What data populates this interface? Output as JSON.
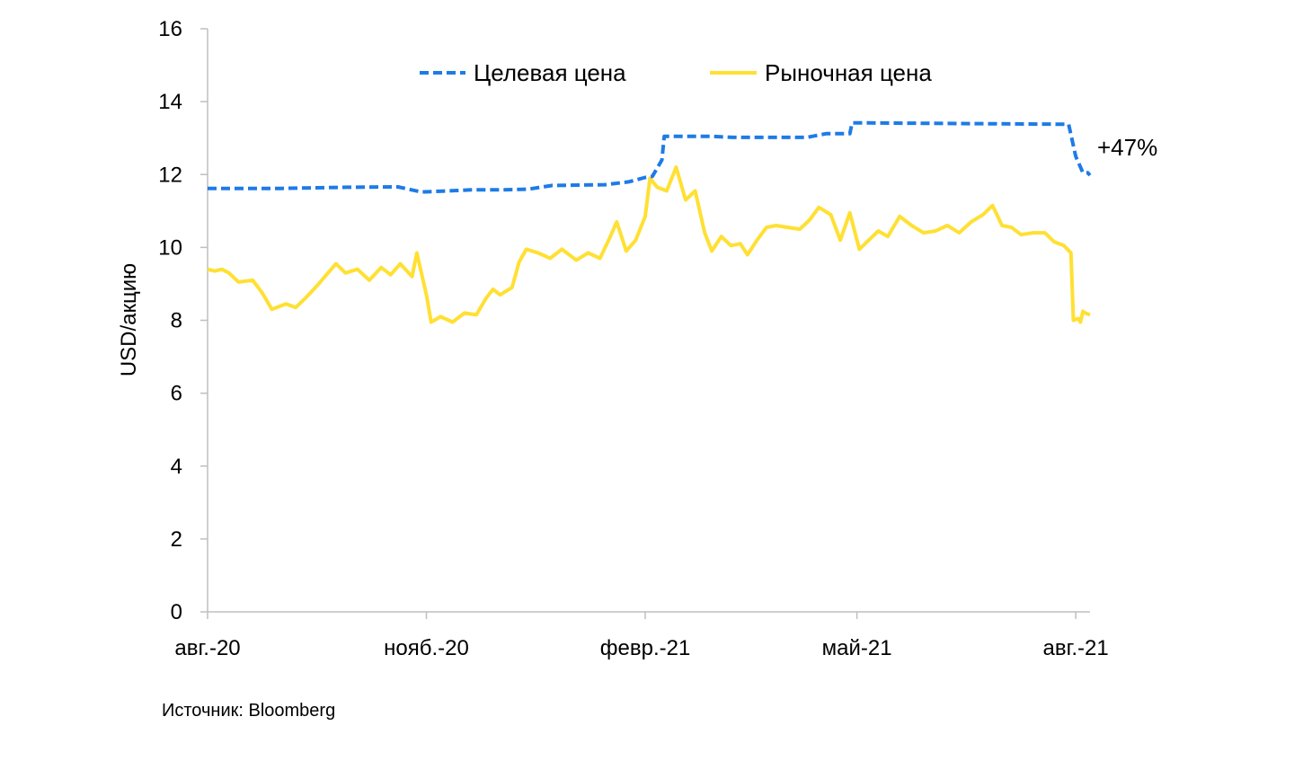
{
  "chart_data": {
    "type": "line",
    "title": "",
    "xlabel": "",
    "ylabel": "USD/акцию",
    "ylim": [
      0,
      16
    ],
    "yticks": [
      0,
      2,
      4,
      6,
      8,
      10,
      12,
      14,
      16
    ],
    "xlim": [
      "2020-08-01",
      "2021-08-07"
    ],
    "xticks": [
      {
        "date": "2020-08-01",
        "label": "авг.-20"
      },
      {
        "date": "2020-11-01",
        "label": "нояб.-20"
      },
      {
        "date": "2021-02-01",
        "label": "февр.-21"
      },
      {
        "date": "2021-05-01",
        "label": "май-21"
      },
      {
        "date": "2021-08-01",
        "label": "авг.-21"
      }
    ],
    "grid": false,
    "legend_position": "top-center",
    "series": [
      {
        "name": "Целевая цена",
        "color": "#1E7BE6",
        "style": "dashed",
        "points": [
          [
            "2020-08-01",
            11.62
          ],
          [
            "2020-09-01",
            11.62
          ],
          [
            "2020-09-29",
            11.65
          ],
          [
            "2020-10-20",
            11.66
          ],
          [
            "2020-10-30",
            11.52
          ],
          [
            "2020-11-10",
            11.55
          ],
          [
            "2020-11-20",
            11.58
          ],
          [
            "2020-12-03",
            11.58
          ],
          [
            "2020-12-14",
            11.6
          ],
          [
            "2020-12-24",
            11.7
          ],
          [
            "2021-01-15",
            11.72
          ],
          [
            "2021-01-25",
            11.8
          ],
          [
            "2021-02-01",
            11.92
          ],
          [
            "2021-02-04",
            11.95
          ],
          [
            "2021-02-08",
            12.4
          ],
          [
            "2021-02-09",
            13.05
          ],
          [
            "2021-03-01",
            13.05
          ],
          [
            "2021-03-10",
            13.02
          ],
          [
            "2021-04-10",
            13.02
          ],
          [
            "2021-04-18",
            13.12
          ],
          [
            "2021-04-28",
            13.12
          ],
          [
            "2021-04-29",
            13.42
          ],
          [
            "2021-07-29",
            13.38
          ],
          [
            "2021-08-01",
            12.5
          ],
          [
            "2021-08-04",
            12.05
          ],
          [
            "2021-08-06",
            12.05
          ],
          [
            "2021-08-07",
            11.98
          ]
        ]
      },
      {
        "name": "Рыночная цена",
        "color": "#FFE033",
        "style": "solid",
        "points": [
          [
            "2020-08-01",
            9.4
          ],
          [
            "2020-08-04",
            9.35
          ],
          [
            "2020-08-07",
            9.4
          ],
          [
            "2020-08-10",
            9.3
          ],
          [
            "2020-08-14",
            9.05
          ],
          [
            "2020-08-20",
            9.1
          ],
          [
            "2020-08-24",
            8.75
          ],
          [
            "2020-08-28",
            8.3
          ],
          [
            "2020-09-03",
            8.45
          ],
          [
            "2020-09-07",
            8.35
          ],
          [
            "2020-09-11",
            8.6
          ],
          [
            "2020-09-16",
            8.95
          ],
          [
            "2020-09-20",
            9.25
          ],
          [
            "2020-09-24",
            9.55
          ],
          [
            "2020-09-28",
            9.3
          ],
          [
            "2020-10-03",
            9.4
          ],
          [
            "2020-10-08",
            9.1
          ],
          [
            "2020-10-13",
            9.45
          ],
          [
            "2020-10-17",
            9.25
          ],
          [
            "2020-10-21",
            9.55
          ],
          [
            "2020-10-26",
            9.2
          ],
          [
            "2020-10-28",
            9.85
          ],
          [
            "2020-11-01",
            8.7
          ],
          [
            "2020-11-03",
            7.95
          ],
          [
            "2020-11-07",
            8.1
          ],
          [
            "2020-11-12",
            7.95
          ],
          [
            "2020-11-17",
            8.2
          ],
          [
            "2020-11-22",
            8.15
          ],
          [
            "2020-11-26",
            8.6
          ],
          [
            "2020-11-29",
            8.85
          ],
          [
            "2020-12-02",
            8.7
          ],
          [
            "2020-12-07",
            8.9
          ],
          [
            "2020-12-10",
            9.6
          ],
          [
            "2020-12-13",
            9.95
          ],
          [
            "2020-12-18",
            9.85
          ],
          [
            "2020-12-23",
            9.7
          ],
          [
            "2020-12-28",
            9.95
          ],
          [
            "2021-01-03",
            9.65
          ],
          [
            "2021-01-08",
            9.85
          ],
          [
            "2021-01-13",
            9.7
          ],
          [
            "2021-01-17",
            10.25
          ],
          [
            "2021-01-20",
            10.7
          ],
          [
            "2021-01-24",
            9.9
          ],
          [
            "2021-01-28",
            10.2
          ],
          [
            "2021-02-01",
            10.85
          ],
          [
            "2021-02-03",
            11.9
          ],
          [
            "2021-02-06",
            11.65
          ],
          [
            "2021-02-10",
            11.55
          ],
          [
            "2021-02-14",
            12.2
          ],
          [
            "2021-02-18",
            11.3
          ],
          [
            "2021-02-22",
            11.55
          ],
          [
            "2021-02-26",
            10.4
          ],
          [
            "2021-03-01",
            9.9
          ],
          [
            "2021-03-05",
            10.3
          ],
          [
            "2021-03-09",
            10.05
          ],
          [
            "2021-03-13",
            10.1
          ],
          [
            "2021-03-16",
            9.8
          ],
          [
            "2021-03-20",
            10.2
          ],
          [
            "2021-03-24",
            10.55
          ],
          [
            "2021-03-28",
            10.6
          ],
          [
            "2021-04-02",
            10.55
          ],
          [
            "2021-04-07",
            10.5
          ],
          [
            "2021-04-11",
            10.75
          ],
          [
            "2021-04-15",
            11.1
          ],
          [
            "2021-04-20",
            10.9
          ],
          [
            "2021-04-24",
            10.2
          ],
          [
            "2021-04-28",
            10.95
          ],
          [
            "2021-05-02",
            9.95
          ],
          [
            "2021-05-06",
            10.2
          ],
          [
            "2021-05-10",
            10.45
          ],
          [
            "2021-05-14",
            10.3
          ],
          [
            "2021-05-19",
            10.85
          ],
          [
            "2021-05-24",
            10.6
          ],
          [
            "2021-05-29",
            10.4
          ],
          [
            "2021-06-03",
            10.45
          ],
          [
            "2021-06-08",
            10.6
          ],
          [
            "2021-06-13",
            10.4
          ],
          [
            "2021-06-18",
            10.7
          ],
          [
            "2021-06-23",
            10.9
          ],
          [
            "2021-06-27",
            11.15
          ],
          [
            "2021-07-01",
            10.6
          ],
          [
            "2021-07-05",
            10.55
          ],
          [
            "2021-07-09",
            10.35
          ],
          [
            "2021-07-14",
            10.4
          ],
          [
            "2021-07-19",
            10.4
          ],
          [
            "2021-07-23",
            10.15
          ],
          [
            "2021-07-27",
            10.05
          ],
          [
            "2021-07-30",
            9.85
          ],
          [
            "2021-07-31",
            8.0
          ],
          [
            "2021-08-02",
            8.05
          ],
          [
            "2021-08-03",
            7.95
          ],
          [
            "2021-08-04",
            8.25
          ],
          [
            "2021-08-05",
            8.2
          ],
          [
            "2021-08-07",
            8.15
          ]
        ]
      }
    ],
    "annotations": [
      {
        "text": "+47%",
        "position": "right of series end"
      }
    ]
  },
  "footer": {
    "source": "Источник: Bloomberg"
  }
}
